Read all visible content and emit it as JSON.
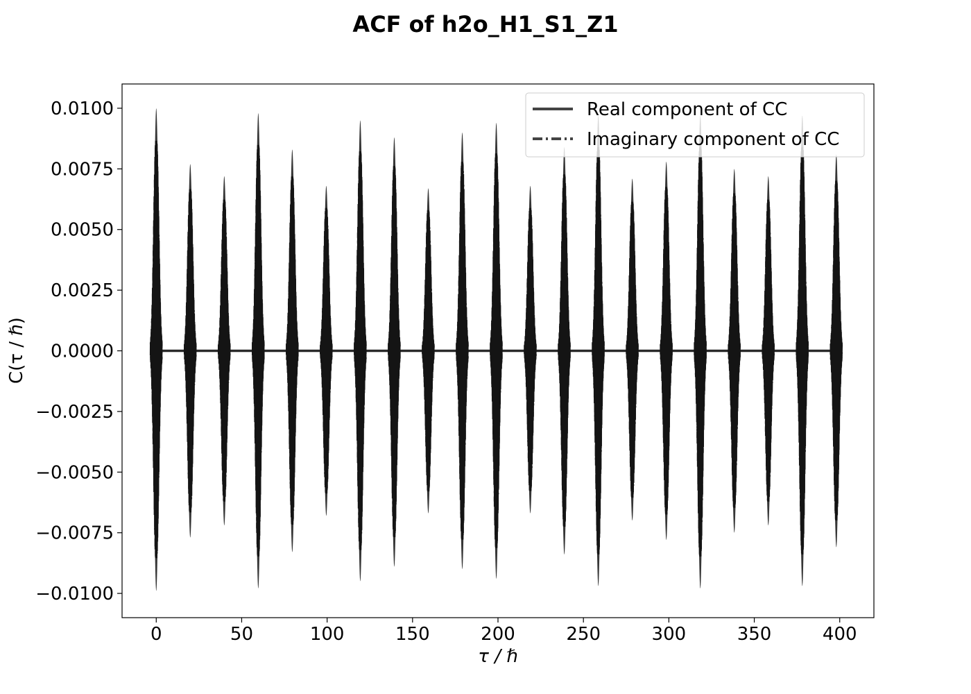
{
  "chart_data": {
    "type": "line",
    "title": "ACF of h2o_H1_S1_Z1",
    "xlabel": "τ / ℏ",
    "ylabel": "C(τ / ℏ)",
    "xlim": [
      -20,
      420
    ],
    "ylim": [
      -0.011,
      0.011
    ],
    "x_ticks": [
      0,
      50,
      100,
      150,
      200,
      250,
      300,
      350,
      400
    ],
    "x_tick_labels": [
      "0",
      "50",
      "100",
      "150",
      "200",
      "250",
      "300",
      "350",
      "400"
    ],
    "y_ticks": [
      0.01,
      0.0075,
      0.005,
      0.0025,
      0.0,
      -0.0025,
      -0.005,
      -0.0075,
      -0.01
    ],
    "y_tick_labels": [
      "0.0100",
      "0.0075",
      "0.0050",
      "0.0025",
      "0.0000",
      "−0.0025",
      "−0.0050",
      "−0.0075",
      "−0.0100"
    ],
    "grid": false,
    "legend_position": "top-right",
    "series": [
      {
        "name": "Real component of CC",
        "linestyle": "solid",
        "color": "#141414"
      },
      {
        "name": "Imaginary component of CC",
        "linestyle": "dashdot",
        "color": "#141414"
      }
    ],
    "peaks": {
      "tau": [
        0,
        19.9,
        39.8,
        59.7,
        79.6,
        99.5,
        119.4,
        139.3,
        159.2,
        179.1,
        199.0,
        218.9,
        238.8,
        258.7,
        278.6,
        298.5,
        318.4,
        338.3,
        358.2,
        378.1,
        398.0
      ],
      "amplitude_max": [
        0.01,
        0.0077,
        0.0072,
        0.0098,
        0.0083,
        0.0068,
        0.0095,
        0.0088,
        0.0067,
        0.009,
        0.0094,
        0.0068,
        0.0084,
        0.0097,
        0.0071,
        0.0078,
        0.0097,
        0.0075,
        0.0072,
        0.0097,
        0.0081
      ],
      "amplitude_min": [
        -0.0099,
        -0.0077,
        -0.0072,
        -0.0098,
        -0.0083,
        -0.0068,
        -0.0095,
        -0.0089,
        -0.0067,
        -0.009,
        -0.0094,
        -0.0067,
        -0.0084,
        -0.0097,
        -0.007,
        -0.0078,
        -0.0098,
        -0.0075,
        -0.0072,
        -0.0097,
        -0.0081
      ]
    }
  }
}
